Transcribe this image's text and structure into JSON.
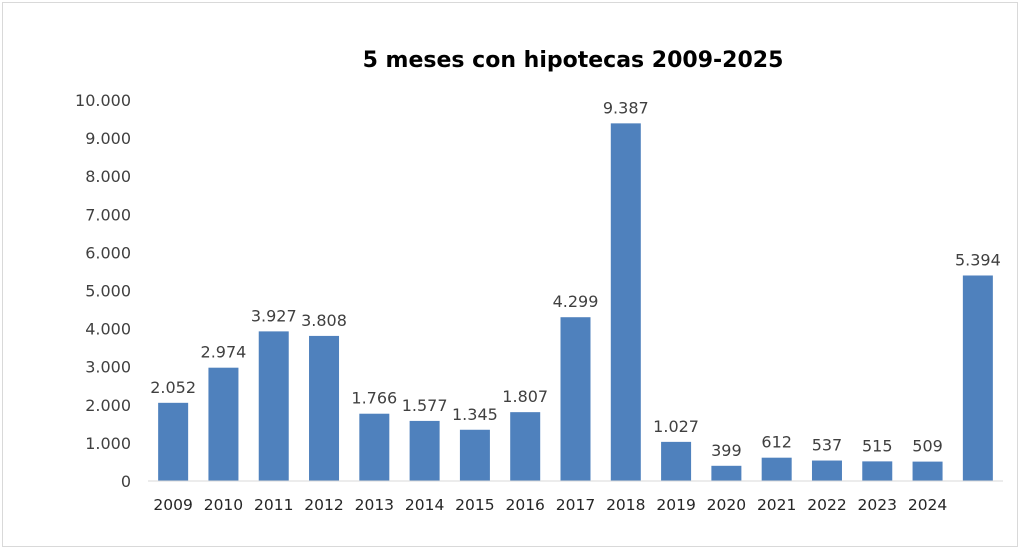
{
  "chart_data": {
    "type": "bar",
    "title": "5 meses con hipotecas 2009-2025",
    "xlabel": "",
    "ylabel": "",
    "ylim": [
      0,
      10000
    ],
    "yticks": [
      0,
      1000,
      2000,
      3000,
      4000,
      5000,
      6000,
      7000,
      8000,
      9000,
      10000
    ],
    "ytick_labels": [
      "0",
      "1.000",
      "2.000",
      "3.000",
      "4.000",
      "5.000",
      "6.000",
      "7.000",
      "8.000",
      "9.000",
      "10.000"
    ],
    "categories": [
      "2009",
      "2010",
      "2011",
      "2012",
      "2013",
      "2014",
      "2015",
      "2016",
      "2017",
      "2018",
      "2019",
      "2020",
      "2021",
      "2022",
      "2023",
      "2024",
      ""
    ],
    "values": [
      2052,
      2974,
      3927,
      3808,
      1766,
      1577,
      1345,
      1807,
      4299,
      9387,
      1027,
      399,
      612,
      537,
      515,
      509,
      5394
    ],
    "data_labels": [
      "2.052",
      "2.974",
      "3.927",
      "3.808",
      "1.766",
      "1.577",
      "1.345",
      "1.807",
      "4.299",
      "9.387",
      "1.027",
      "399",
      "612",
      "537",
      "515",
      "509",
      "5.394"
    ],
    "grid": false,
    "legend": "none",
    "bar_color": "#4f81bd",
    "axis_color": "#d9d9d9"
  }
}
